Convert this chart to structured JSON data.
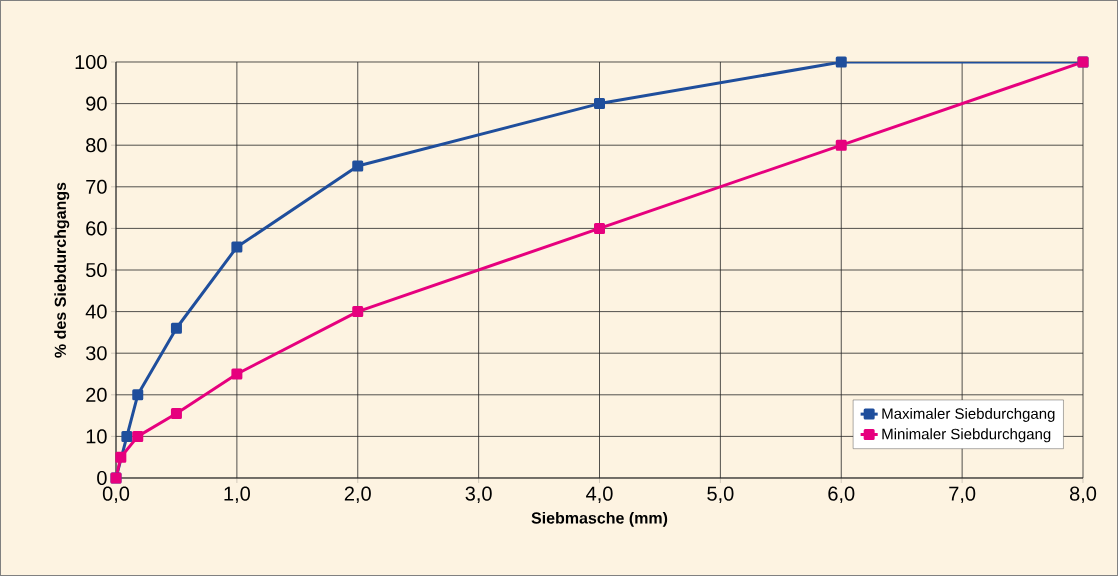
{
  "chart_data": {
    "type": "line",
    "xlabel": "Siebmasche (mm)",
    "ylabel": "% des Siebdurchgangs",
    "xlim": [
      0,
      8
    ],
    "ylim": [
      0,
      100
    ],
    "xticks": [
      {
        "value": 0,
        "label": "0,0"
      },
      {
        "value": 1,
        "label": "1,0"
      },
      {
        "value": 2,
        "label": "2,0"
      },
      {
        "value": 3,
        "label": "3,0"
      },
      {
        "value": 4,
        "label": "4,0"
      },
      {
        "value": 5,
        "label": "5,0"
      },
      {
        "value": 6,
        "label": "6,0"
      },
      {
        "value": 7,
        "label": "7,0"
      },
      {
        "value": 8,
        "label": "8,0"
      }
    ],
    "yticks": [
      0,
      10,
      20,
      30,
      40,
      50,
      60,
      70,
      80,
      90,
      100
    ],
    "grid": true,
    "legend": "bottom right",
    "marker": "square",
    "line_style": "solid",
    "series": [
      {
        "name": "Maximaler Siebdurchgang",
        "color": "#1f4e9c",
        "x": [
          0,
          0.09,
          0.18,
          0.5,
          1,
          2,
          4,
          6,
          8
        ],
        "values": [
          0,
          10,
          20,
          36,
          55.5,
          75,
          90,
          100,
          100
        ]
      },
      {
        "name": "Minimaler Siebdurchgang",
        "color": "#e6007e",
        "x": [
          0,
          0.04,
          0.18,
          0.5,
          1,
          2,
          4,
          6,
          8
        ],
        "values": [
          0,
          5,
          10,
          15.5,
          25,
          40,
          60,
          80,
          100
        ]
      }
    ]
  }
}
